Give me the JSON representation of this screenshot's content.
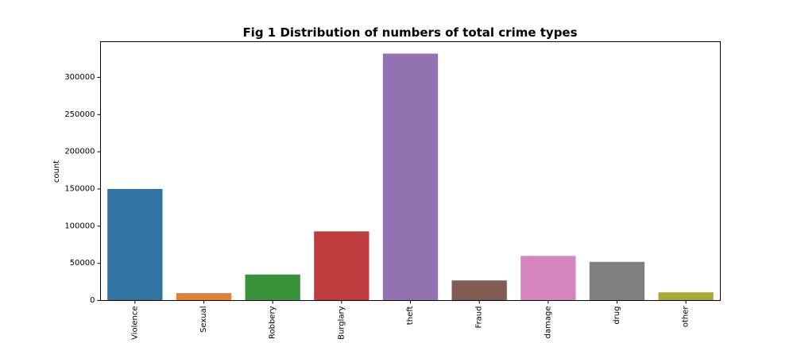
{
  "chart_data": {
    "type": "bar",
    "title": "Fig 1 Distribution of numbers of total crime types",
    "xlabel": "",
    "ylabel": "count",
    "categories": [
      "Violence",
      "Sexual",
      "Robbery",
      "Burglary",
      "theft",
      "Fraud",
      "damage",
      "drug",
      "other"
    ],
    "values": [
      150000,
      10000,
      35000,
      93000,
      332000,
      27000,
      60000,
      52000,
      11000
    ],
    "colors": [
      "#3274a1",
      "#e1812c",
      "#3a923a",
      "#c03d3e",
      "#9372b2",
      "#845b53",
      "#d684bd",
      "#7f7f7f",
      "#a9aa35"
    ],
    "yticks": [
      0,
      50000,
      100000,
      150000,
      200000,
      250000,
      300000
    ],
    "ytick_labels": [
      "0",
      "50000",
      "100000",
      "150000",
      "200000",
      "250000",
      "300000"
    ],
    "ylim": [
      0,
      348000
    ],
    "grid": false,
    "legend": "none"
  }
}
